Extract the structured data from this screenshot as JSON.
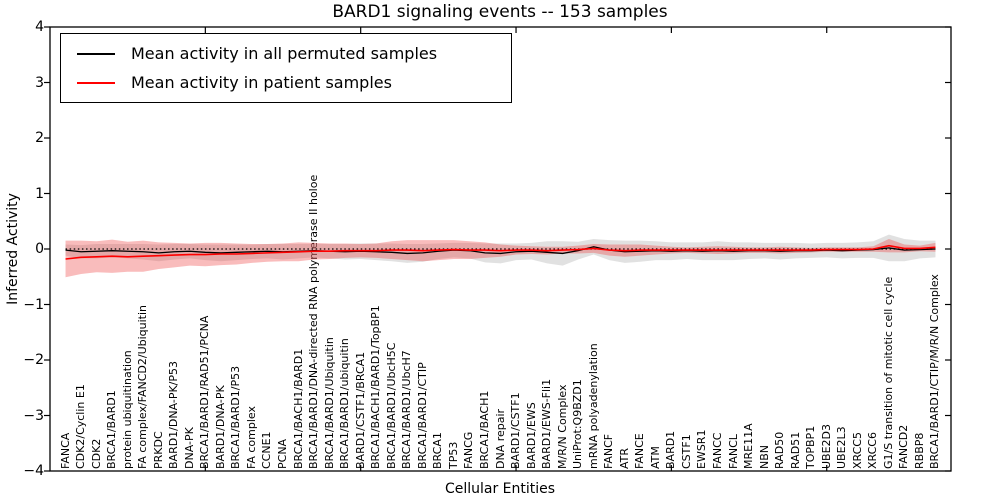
{
  "title": "BARD1 signaling events -- 153 samples",
  "legend": {
    "entries": [
      {
        "label": "Mean activity in all permuted samples",
        "color": "#000000"
      },
      {
        "label": "Mean activity in patient samples",
        "color": "#ff0000"
      }
    ]
  },
  "chart_data": {
    "type": "line",
    "title": "BARD1 signaling events -- 153 samples",
    "xlabel": "Cellular Entities",
    "ylabel": "Inferred Activity",
    "ylim": [
      -4,
      4
    ],
    "yticks": [
      -4,
      -3,
      -2,
      -1,
      0,
      1,
      2,
      3,
      4
    ],
    "grid": false,
    "legend_position": "upper left",
    "zero_line": {
      "y": 0,
      "style": "dotted",
      "color": "#000000"
    },
    "band_colors": {
      "permuted": "#aaaaaa",
      "patient": "#ee3333"
    },
    "categories": [
      "FANCA",
      "CDK2/Cyclin E1",
      "CDK2",
      "BRCA1/BARD1",
      "protein ubiquitination",
      "FA complex/FANCD2/Ubiquitin",
      "PRKDC",
      "BARD1/DNA-PK/P53",
      "DNA-PK",
      "BRCA1/BARD1/RAD51/PCNA",
      "BARD1/DNA-PK",
      "BRCA1/BARD1/P53",
      "FA complex",
      "CCNE1",
      "PCNA",
      "BRCA1/BACH1/BARD1",
      "BRCA1/BARD1/DNA-directed RNA polymerase II holoe",
      "BRCA1/BARD1/Ubiquitin",
      "BRCA1/BARD1/ubiquitin",
      "BARD1/CSTF1/BRCA1",
      "BRCA1/BACH1/BARD1/TopBP1",
      "BRCA1/BARD1/UbcH5C",
      "BRCA1/BARD1/UbcH7",
      "BRCA1/BARD1/CTIP",
      "BRCA1",
      "TP53",
      "FANCG",
      "BRCA1/BACH1",
      "DNA repair",
      "BARD1/CSTF1",
      "BARD1/EWS",
      "BARD1/EWS-Fli1",
      "M/R/N Complex",
      "UniProt:Q9BZD1",
      "mRNA polyadenylation",
      "FANCF",
      "ATR",
      "FANCE",
      "ATM",
      "BARD1",
      "CSTF1",
      "EWSR1",
      "FANCC",
      "FANCL",
      "MRE11A",
      "NBN",
      "RAD50",
      "RAD51",
      "TOPBP1",
      "UBE2D3",
      "UBE2L3",
      "XRCC5",
      "XRCC6",
      "G1/S transition of mitotic cell cycle",
      "FANCD2",
      "RBBP8",
      "BRCA1/BARD1/CTIP/M/R/N Complex"
    ],
    "series": [
      {
        "name": "Mean activity in all permuted samples",
        "color": "#000000",
        "values": [
          -0.02,
          -0.05,
          -0.04,
          -0.03,
          -0.04,
          -0.05,
          -0.07,
          -0.05,
          -0.04,
          -0.06,
          -0.07,
          -0.06,
          -0.05,
          -0.04,
          -0.05,
          -0.04,
          -0.03,
          -0.04,
          -0.05,
          -0.04,
          -0.05,
          -0.06,
          -0.08,
          -0.07,
          -0.04,
          -0.02,
          -0.03,
          -0.07,
          -0.08,
          -0.05,
          -0.04,
          -0.06,
          -0.08,
          -0.03,
          0.04,
          -0.02,
          -0.05,
          -0.04,
          -0.03,
          -0.04,
          -0.03,
          -0.04,
          -0.03,
          -0.04,
          -0.03,
          -0.03,
          -0.04,
          -0.03,
          -0.03,
          -0.02,
          -0.03,
          -0.02,
          -0.01,
          0.02,
          -0.02,
          -0.01,
          0.0
        ],
        "band_halfwidth": [
          0.1,
          0.12,
          0.13,
          0.12,
          0.13,
          0.14,
          0.15,
          0.14,
          0.13,
          0.14,
          0.15,
          0.14,
          0.13,
          0.13,
          0.14,
          0.13,
          0.12,
          0.13,
          0.14,
          0.14,
          0.15,
          0.16,
          0.17,
          0.16,
          0.14,
          0.13,
          0.14,
          0.17,
          0.18,
          0.15,
          0.15,
          0.2,
          0.22,
          0.16,
          0.14,
          0.18,
          0.2,
          0.19,
          0.17,
          0.16,
          0.15,
          0.16,
          0.17,
          0.16,
          0.15,
          0.14,
          0.15,
          0.14,
          0.13,
          0.13,
          0.14,
          0.14,
          0.15,
          0.24,
          0.2,
          0.16,
          0.15
        ]
      },
      {
        "name": "Mean activity in patient samples",
        "color": "#ff0000",
        "values": [
          -0.18,
          -0.15,
          -0.14,
          -0.13,
          -0.14,
          -0.13,
          -0.12,
          -0.11,
          -0.1,
          -0.1,
          -0.09,
          -0.09,
          -0.08,
          -0.07,
          -0.06,
          -0.05,
          -0.04,
          -0.04,
          -0.03,
          -0.03,
          -0.03,
          -0.02,
          -0.02,
          -0.03,
          -0.02,
          -0.01,
          -0.02,
          -0.02,
          -0.03,
          -0.02,
          -0.02,
          -0.03,
          -0.02,
          -0.01,
          0.01,
          -0.02,
          -0.03,
          -0.02,
          -0.02,
          -0.02,
          -0.02,
          -0.02,
          -0.02,
          -0.02,
          -0.02,
          -0.02,
          -0.02,
          -0.02,
          -0.02,
          -0.01,
          -0.01,
          -0.01,
          0.0,
          0.06,
          0.01,
          0.01,
          0.03
        ],
        "band_halfwidth": [
          0.33,
          0.3,
          0.28,
          0.3,
          0.27,
          0.28,
          0.24,
          0.22,
          0.2,
          0.21,
          0.2,
          0.19,
          0.17,
          0.16,
          0.16,
          0.17,
          0.15,
          0.14,
          0.13,
          0.12,
          0.13,
          0.16,
          0.18,
          0.19,
          0.18,
          0.17,
          0.16,
          0.14,
          0.11,
          0.08,
          0.07,
          0.07,
          0.06,
          0.07,
          0.08,
          0.1,
          0.11,
          0.1,
          0.08,
          0.06,
          0.05,
          0.06,
          0.07,
          0.06,
          0.05,
          0.05,
          0.06,
          0.05,
          0.04,
          0.04,
          0.04,
          0.04,
          0.05,
          0.12,
          0.07,
          0.05,
          0.08
        ]
      }
    ]
  }
}
